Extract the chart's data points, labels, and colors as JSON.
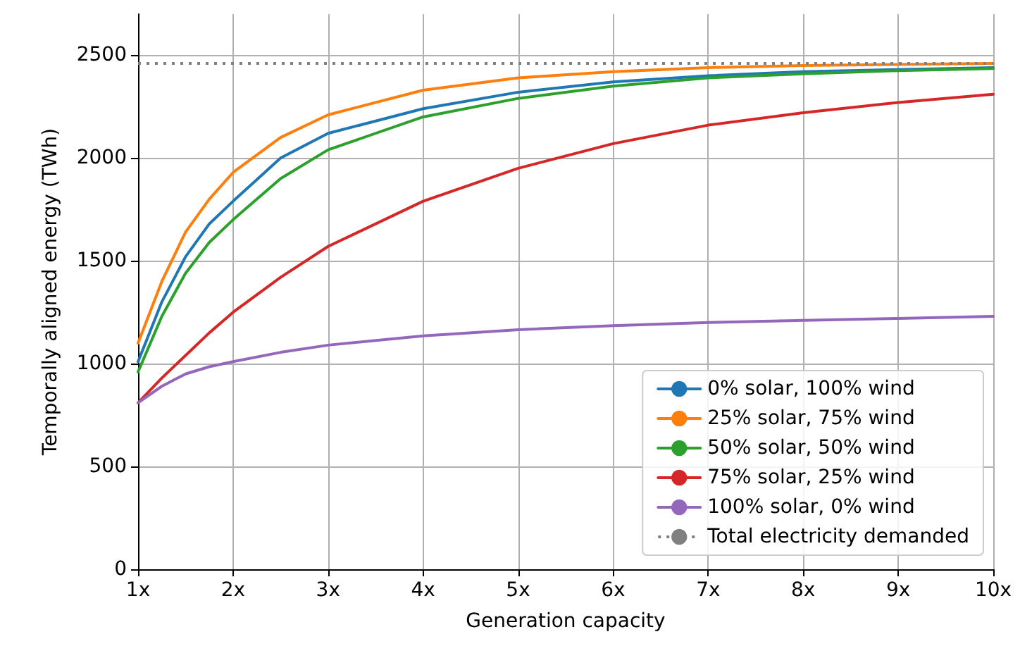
{
  "chart_data": {
    "type": "line",
    "xlabel": "Generation capacity",
    "ylabel": "Temporally aligned energy (TWh)",
    "x": [
      1,
      1.25,
      1.5,
      1.75,
      2,
      2.5,
      3,
      4,
      5,
      6,
      7,
      8,
      9,
      10
    ],
    "series": [
      {
        "name": "0% solar, 100% wind",
        "color": "#1f77b4",
        "values": [
          1010,
          1300,
          1520,
          1680,
          1790,
          2000,
          2120,
          2240,
          2320,
          2370,
          2400,
          2420,
          2430,
          2440
        ]
      },
      {
        "name": "25% solar, 75% wind",
        "color": "#ff7f0e",
        "values": [
          1100,
          1400,
          1640,
          1800,
          1930,
          2100,
          2210,
          2330,
          2390,
          2420,
          2440,
          2450,
          2455,
          2460
        ]
      },
      {
        "name": "50% solar, 50% wind",
        "color": "#2ca02c",
        "values": [
          960,
          1230,
          1440,
          1590,
          1700,
          1900,
          2040,
          2200,
          2290,
          2350,
          2390,
          2410,
          2425,
          2435
        ]
      },
      {
        "name": "75% solar, 25% wind",
        "color": "#d62728",
        "values": [
          810,
          930,
          1040,
          1150,
          1250,
          1420,
          1570,
          1790,
          1950,
          2070,
          2160,
          2220,
          2270,
          2310
        ]
      },
      {
        "name": "100% solar, 0% wind",
        "color": "#9467bd",
        "values": [
          810,
          890,
          950,
          985,
          1010,
          1055,
          1090,
          1135,
          1165,
          1185,
          1200,
          1210,
          1220,
          1230
        ]
      }
    ],
    "ref_lines": [
      {
        "axis": "y",
        "value": 2460,
        "label": "Total electricity demanded",
        "color": "#808080",
        "line_style": "dotted"
      }
    ],
    "xlim": [
      1,
      10
    ],
    "xticks": [
      {
        "value": 1,
        "label": "1x"
      },
      {
        "value": 2,
        "label": "2x"
      },
      {
        "value": 3,
        "label": "3x"
      },
      {
        "value": 4,
        "label": "4x"
      },
      {
        "value": 5,
        "label": "5x"
      },
      {
        "value": 6,
        "label": "6x"
      },
      {
        "value": 7,
        "label": "7x"
      },
      {
        "value": 8,
        "label": "8x"
      },
      {
        "value": 9,
        "label": "9x"
      },
      {
        "value": 10,
        "label": "10x"
      }
    ],
    "ylim": [
      0,
      2700
    ],
    "yticks": [
      0,
      500,
      1000,
      1500,
      2000,
      2500
    ],
    "grid": true,
    "legend": "bottom right",
    "marker": "none",
    "line_style": "solid"
  }
}
